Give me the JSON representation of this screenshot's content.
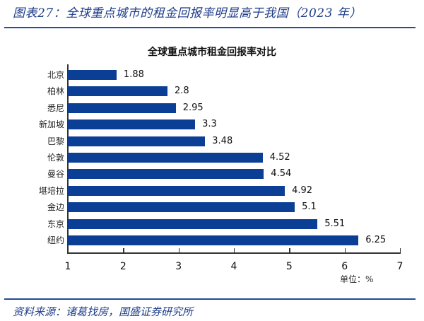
{
  "figure": {
    "title": "图表27：全球重点城市的租金回报率明显高于我国（2023 年）",
    "source": "资料来源：诸葛找房，国盛证券研究所",
    "rule_color": "#1f4e9a",
    "title_color": "#1f3d8a"
  },
  "chart_data": {
    "type": "bar",
    "orientation": "horizontal",
    "title": "全球重点城市租金回报率对比",
    "xlabel": "",
    "ylabel": "",
    "unit_label": "单位：%",
    "categories": [
      "北京",
      "柏林",
      "悉尼",
      "新加坡",
      "巴黎",
      "伦敦",
      "曼谷",
      "堪培拉",
      "金边",
      "东京",
      "纽约"
    ],
    "values": [
      1.88,
      2.8,
      2.95,
      3.3,
      3.48,
      4.52,
      4.54,
      4.92,
      5.1,
      5.51,
      6.25
    ],
    "value_labels": [
      "1.88",
      "2.8",
      "2.95",
      "3.3",
      "3.48",
      "4.52",
      "4.54",
      "4.92",
      "5.1",
      "5.51",
      "6.25"
    ],
    "xlim": [
      1,
      7
    ],
    "xticks": [
      "1",
      "2",
      "3",
      "4",
      "5",
      "6",
      "7"
    ],
    "bar_color": "#0b3f96",
    "grid": false,
    "legend": null
  }
}
